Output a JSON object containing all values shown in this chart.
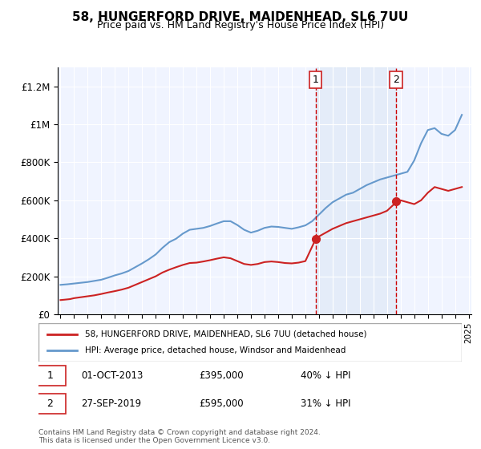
{
  "title": "58, HUNGERFORD DRIVE, MAIDENHEAD, SL6 7UU",
  "subtitle": "Price paid vs. HM Land Registry's House Price Index (HPI)",
  "background_color": "#ffffff",
  "plot_bg_color": "#f0f4ff",
  "ylabel": "",
  "xlabel": "",
  "ylim": [
    0,
    1300000
  ],
  "yticks": [
    0,
    200000,
    400000,
    600000,
    800000,
    1000000,
    1200000
  ],
  "ytick_labels": [
    "£0",
    "£200K",
    "£400K",
    "£600K",
    "£800K",
    "£1M",
    "£1.2M"
  ],
  "purchase_dates": [
    "2013-10-01",
    "2019-09-27"
  ],
  "purchase_prices": [
    395000,
    595000
  ],
  "purchase_labels": [
    "1",
    "2"
  ],
  "legend_line1": "58, HUNGERFORD DRIVE, MAIDENHEAD, SL6 7UU (detached house)",
  "legend_line2": "HPI: Average price, detached house, Windsor and Maidenhead",
  "table_entries": [
    {
      "label": "1",
      "date": "01-OCT-2013",
      "price": "£395,000",
      "hpi": "40% ↓ HPI"
    },
    {
      "label": "2",
      "date": "27-SEP-2019",
      "price": "£595,000",
      "hpi": "31% ↓ HPI"
    }
  ],
  "footer": "Contains HM Land Registry data © Crown copyright and database right 2024.\nThis data is licensed under the Open Government Licence v3.0.",
  "hpi_color": "#6699cc",
  "price_color": "#cc2222",
  "shade_color": "#dce8f5",
  "dashed_color": "#cc0000",
  "hpi_years": [
    1995,
    1995.5,
    1996,
    1996.5,
    1997,
    1997.5,
    1998,
    1998.5,
    1999,
    1999.5,
    2000,
    2000.5,
    2001,
    2001.5,
    2002,
    2002.5,
    2003,
    2003.5,
    2004,
    2004.5,
    2005,
    2005.5,
    2006,
    2006.5,
    2007,
    2007.5,
    2008,
    2008.5,
    2009,
    2009.5,
    2010,
    2010.5,
    2011,
    2011.5,
    2012,
    2012.5,
    2013,
    2013.5,
    2014,
    2014.5,
    2015,
    2015.5,
    2016,
    2016.5,
    2017,
    2017.5,
    2018,
    2018.5,
    2019,
    2019.5,
    2020,
    2020.5,
    2021,
    2021.5,
    2022,
    2022.5,
    2023,
    2023.5,
    2024,
    2024.5
  ],
  "hpi_values": [
    155000,
    158000,
    162000,
    166000,
    170000,
    176000,
    182000,
    193000,
    205000,
    215000,
    228000,
    248000,
    268000,
    290000,
    315000,
    350000,
    380000,
    398000,
    425000,
    445000,
    450000,
    455000,
    465000,
    478000,
    490000,
    490000,
    470000,
    445000,
    430000,
    440000,
    455000,
    462000,
    460000,
    455000,
    450000,
    458000,
    468000,
    490000,
    525000,
    560000,
    590000,
    610000,
    630000,
    640000,
    660000,
    680000,
    695000,
    710000,
    720000,
    730000,
    740000,
    750000,
    810000,
    900000,
    970000,
    980000,
    950000,
    940000,
    970000,
    1050000
  ],
  "price_years": [
    1995,
    1995.3,
    1995.7,
    1996,
    1996.5,
    1997,
    1997.5,
    1998,
    1998.5,
    1999,
    1999.5,
    2000,
    2000.5,
    2001,
    2001.5,
    2002,
    2002.5,
    2003,
    2003.5,
    2004,
    2004.5,
    2005,
    2005.5,
    2006,
    2006.5,
    2007,
    2007.5,
    2008,
    2008.5,
    2009,
    2009.5,
    2010,
    2010.5,
    2011,
    2011.5,
    2012,
    2012.5,
    2013,
    2013.75,
    2014,
    2014.5,
    2015,
    2015.5,
    2016,
    2016.5,
    2017,
    2017.5,
    2018,
    2018.5,
    2019,
    2019.75,
    2020,
    2020.5,
    2021,
    2021.5,
    2022,
    2022.5,
    2023,
    2023.5,
    2024,
    2024.5
  ],
  "price_values": [
    75000,
    77000,
    80000,
    85000,
    90000,
    95000,
    100000,
    107000,
    115000,
    122000,
    130000,
    140000,
    155000,
    170000,
    185000,
    200000,
    220000,
    235000,
    248000,
    260000,
    270000,
    272000,
    278000,
    285000,
    293000,
    300000,
    295000,
    280000,
    265000,
    260000,
    265000,
    275000,
    278000,
    275000,
    270000,
    268000,
    272000,
    280000,
    395000,
    410000,
    430000,
    450000,
    465000,
    480000,
    490000,
    500000,
    510000,
    520000,
    530000,
    545000,
    595000,
    600000,
    590000,
    580000,
    600000,
    640000,
    670000,
    660000,
    650000,
    660000,
    670000
  ]
}
